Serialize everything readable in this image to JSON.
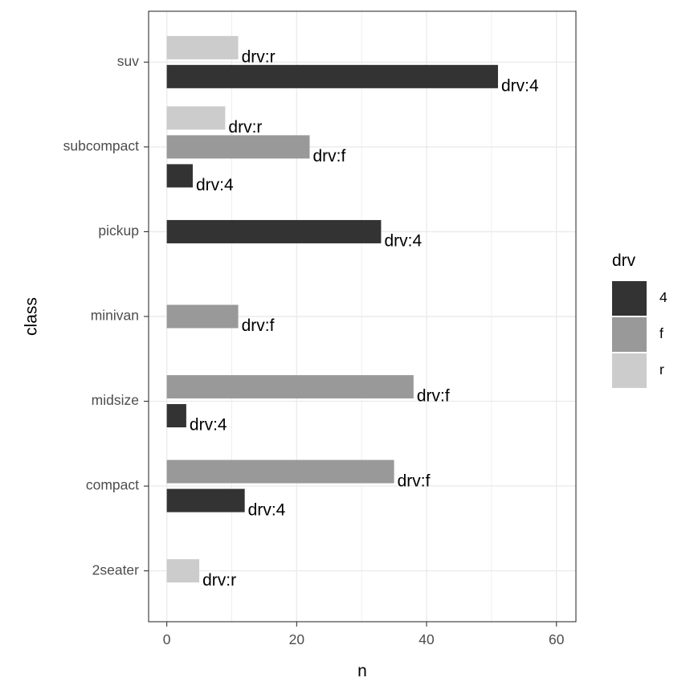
{
  "chart_data": {
    "type": "bar",
    "orientation": "horizontal",
    "xlabel": "n",
    "ylabel": "class",
    "xlim": [
      -2.8,
      63
    ],
    "x_ticks": [
      0,
      20,
      40,
      60
    ],
    "x_minor_ticks": [
      10,
      30,
      50
    ],
    "grid": true,
    "categories": [
      "2seater",
      "compact",
      "midsize",
      "minivan",
      "pickup",
      "subcompact",
      "suv"
    ],
    "legend": {
      "title": "drv",
      "placement": "right",
      "entries": [
        {
          "key": "4",
          "label": "4",
          "color": "#333333"
        },
        {
          "key": "f",
          "label": "f",
          "color": "#999999"
        },
        {
          "key": "r",
          "label": "r",
          "color": "#cccccc"
        }
      ]
    },
    "bars": [
      {
        "category": "2seater",
        "drv": "r",
        "n": 5,
        "label": "drv:r"
      },
      {
        "category": "compact",
        "drv": "4",
        "n": 12,
        "label": "drv:4"
      },
      {
        "category": "compact",
        "drv": "f",
        "n": 35,
        "label": "drv:f"
      },
      {
        "category": "midsize",
        "drv": "4",
        "n": 3,
        "label": "drv:4"
      },
      {
        "category": "midsize",
        "drv": "f",
        "n": 38,
        "label": "drv:f"
      },
      {
        "category": "minivan",
        "drv": "f",
        "n": 11,
        "label": "drv:f"
      },
      {
        "category": "pickup",
        "drv": "4",
        "n": 33,
        "label": "drv:4"
      },
      {
        "category": "subcompact",
        "drv": "4",
        "n": 4,
        "label": "drv:4"
      },
      {
        "category": "subcompact",
        "drv": "f",
        "n": 22,
        "label": "drv:f"
      },
      {
        "category": "subcompact",
        "drv": "r",
        "n": 9,
        "label": "drv:r"
      },
      {
        "category": "suv",
        "drv": "4",
        "n": 51,
        "label": "drv:4"
      },
      {
        "category": "suv",
        "drv": "r",
        "n": 11,
        "label": "drv:r"
      }
    ]
  }
}
